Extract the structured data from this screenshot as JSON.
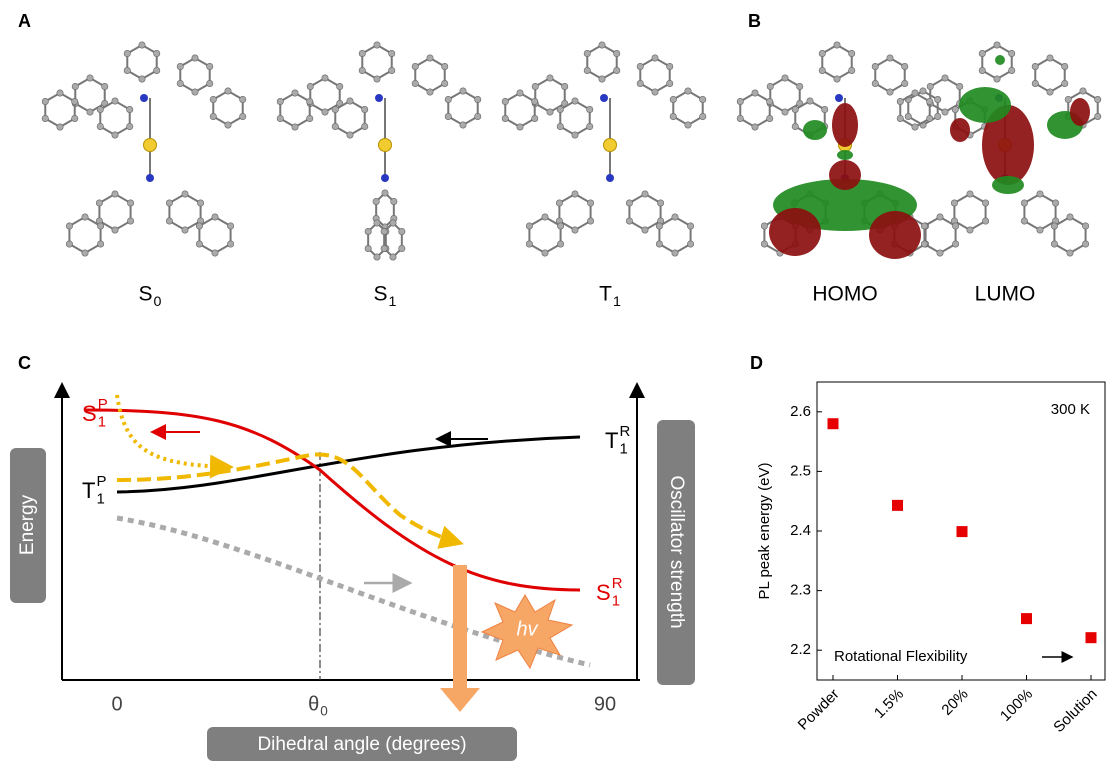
{
  "panel_labels": [
    "A",
    "B",
    "C",
    "D"
  ],
  "structures": [
    {
      "base": "S",
      "sub": "0"
    },
    {
      "base": "S",
      "sub": "1"
    },
    {
      "base": "T",
      "sub": "1"
    }
  ],
  "orbitals": [
    "HOMO",
    "LUMO"
  ],
  "diagram": {
    "y_label": "Energy",
    "y2_label": "Oscillator strength",
    "x_label": "Dihedral angle (degrees)",
    "x_ticks": [
      {
        "base": "0"
      },
      {
        "base": "θ",
        "sub": "0"
      },
      {
        "base": "90"
      }
    ],
    "curve_labels": [
      {
        "base": "S",
        "sub": "1",
        "sup": "P"
      },
      {
        "base": "T",
        "sub": "1",
        "sup": "R"
      },
      {
        "base": "T",
        "sub": "1",
        "sup": "P"
      },
      {
        "base": "S",
        "sub": "1",
        "sup": "R"
      }
    ],
    "emission": "hv"
  },
  "chart_data": {
    "type": "scatter",
    "categories": [
      "Powder",
      "1.5%",
      "20%",
      "100%",
      "Solution"
    ],
    "values": [
      2.58,
      2.443,
      2.399,
      2.253,
      2.221
    ],
    "color": "#e60000",
    "ylim": [
      2.15,
      2.65
    ],
    "yticks": [
      2.2,
      2.3,
      2.4,
      2.5,
      2.6
    ],
    "ylabel": "PL peak energy (eV)",
    "annotations": [
      "300 K",
      "Rotational Flexibility"
    ]
  }
}
